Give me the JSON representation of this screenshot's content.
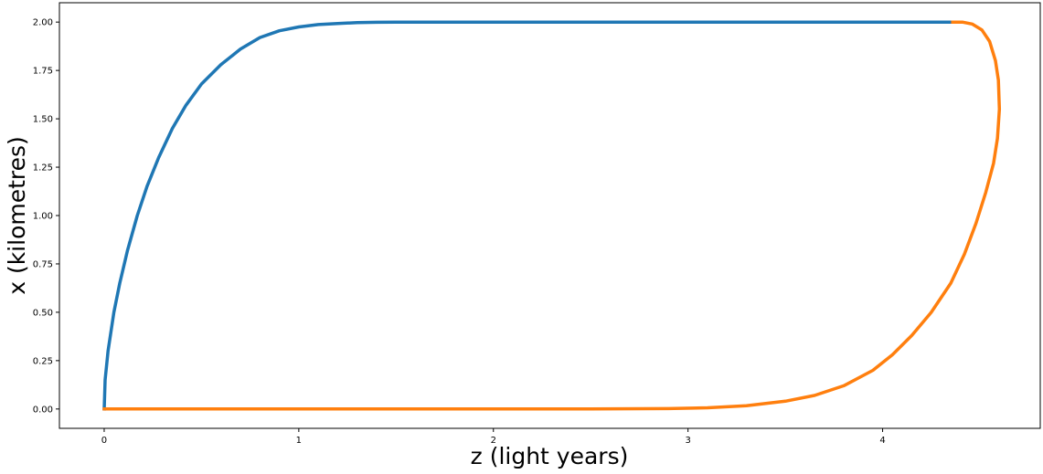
{
  "chart_data": {
    "type": "line",
    "title": "",
    "xlabel": "z (light years)",
    "ylabel": "x (kilometres)",
    "xlim": [
      -0.23,
      4.81
    ],
    "ylim": [
      -0.1,
      2.1
    ],
    "xticks": [
      0,
      1,
      2,
      3,
      4
    ],
    "xtick_labels": [
      "0",
      "1",
      "2",
      "3",
      "4"
    ],
    "yticks": [
      0.0,
      0.25,
      0.5,
      0.75,
      1.0,
      1.25,
      1.5,
      1.75,
      2.0
    ],
    "ytick_labels": [
      "0.00",
      "0.25",
      "0.50",
      "0.75",
      "1.00",
      "1.25",
      "1.50",
      "1.75",
      "2.00"
    ],
    "grid": false,
    "legend": false,
    "series": [
      {
        "color": "#1f77b4",
        "x": [
          0,
          0.005,
          0.02,
          0.05,
          0.08,
          0.12,
          0.17,
          0.22,
          0.28,
          0.35,
          0.42,
          0.5,
          0.6,
          0.7,
          0.8,
          0.9,
          1.0,
          1.1,
          1.2,
          1.3,
          1.4,
          1.5,
          2.0,
          2.5,
          3.0,
          3.5,
          4.0,
          4.36
        ],
        "y": [
          0,
          0.15,
          0.3,
          0.5,
          0.65,
          0.82,
          1.0,
          1.15,
          1.3,
          1.45,
          1.57,
          1.68,
          1.78,
          1.86,
          1.92,
          1.955,
          1.975,
          1.987,
          1.993,
          1.997,
          1.999,
          2.0,
          2.0,
          2.0,
          2.0,
          2.0,
          2.0,
          2.0
        ]
      },
      {
        "color": "#ff7f0e",
        "x": [
          0,
          0.5,
          1.0,
          1.5,
          2.0,
          2.5,
          2.9,
          3.1,
          3.3,
          3.5,
          3.65,
          3.8,
          3.95,
          4.05,
          4.15,
          4.25,
          4.35,
          4.42,
          4.48,
          4.53,
          4.57,
          4.59,
          4.6,
          4.595,
          4.58,
          4.55,
          4.51,
          4.46,
          4.41,
          4.36
        ],
        "y": [
          0,
          0,
          0,
          0,
          0,
          0,
          0.002,
          0.006,
          0.017,
          0.04,
          0.07,
          0.12,
          0.2,
          0.28,
          0.38,
          0.5,
          0.65,
          0.8,
          0.96,
          1.12,
          1.27,
          1.4,
          1.55,
          1.7,
          1.8,
          1.9,
          1.96,
          1.99,
          2.0,
          2.0
        ]
      }
    ]
  }
}
